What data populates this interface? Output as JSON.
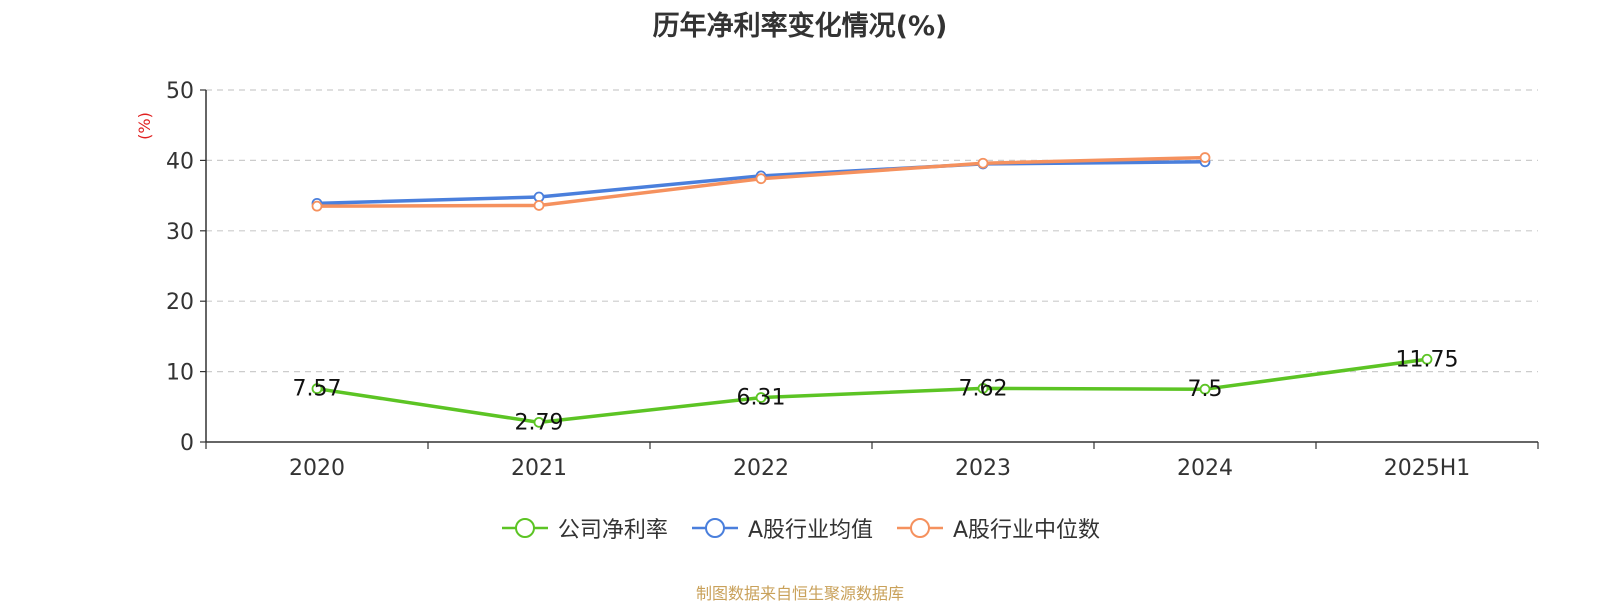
{
  "chart_data": {
    "type": "line",
    "title": "历年净利率变化情况(%)",
    "ylabel": "(%)",
    "categories": [
      "2020",
      "2021",
      "2022",
      "2023",
      "2024",
      "2025H1"
    ],
    "ylim": [
      0,
      50
    ],
    "yticks": [
      0,
      10,
      20,
      30,
      40,
      50
    ],
    "grid": true,
    "legend_position": "bottom",
    "series": [
      {
        "name": "公司净利率",
        "color": "#5cc424",
        "values": [
          7.57,
          2.79,
          6.31,
          7.62,
          7.5,
          11.75
        ],
        "labels": [
          "7.57",
          "2.79",
          "6.31",
          "7.62",
          "7.5",
          "11.75"
        ]
      },
      {
        "name": "A股行业均值",
        "color": "#4a7fdc",
        "values": [
          33.9,
          34.8,
          37.8,
          39.5,
          39.8,
          null
        ]
      },
      {
        "name": "A股行业中位数",
        "color": "#f5915e",
        "values": [
          33.5,
          33.6,
          37.4,
          39.6,
          40.4,
          null
        ]
      }
    ]
  },
  "source": "制图数据来自恒生聚源数据库"
}
